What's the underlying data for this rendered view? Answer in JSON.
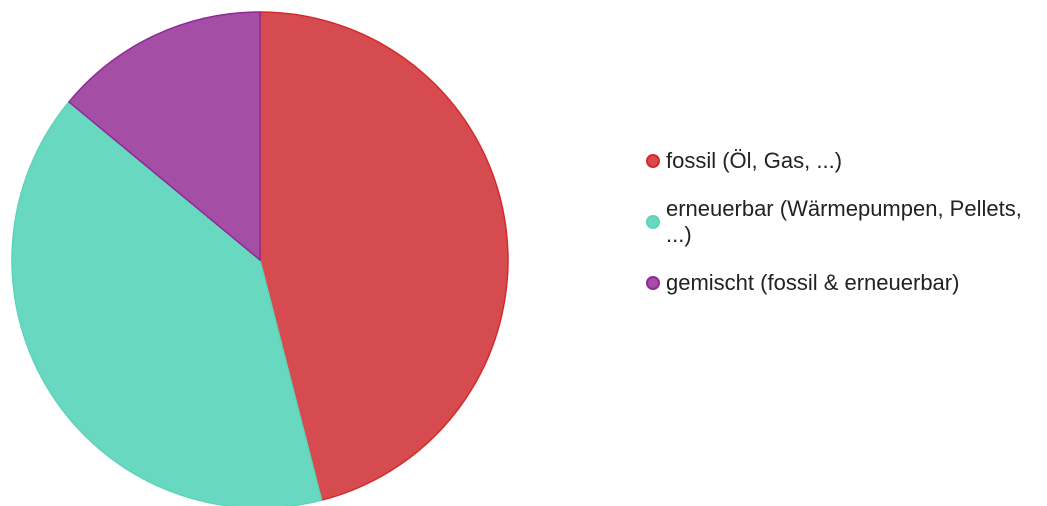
{
  "chart_data": {
    "type": "pie",
    "categories": [
      "fossil (Öl, Gas, ...)",
      "erneuerbar (Wärmepumpen, Pellets, ...)",
      "gemischt (fossil & erneuerbar)"
    ],
    "values": [
      46,
      40,
      14
    ],
    "colors": [
      "#d64b4f",
      "#68d8c0",
      "#a44ea6"
    ],
    "edge_colors": [
      "#d62a2a",
      "#5cd4b8",
      "#8e2a96"
    ]
  }
}
